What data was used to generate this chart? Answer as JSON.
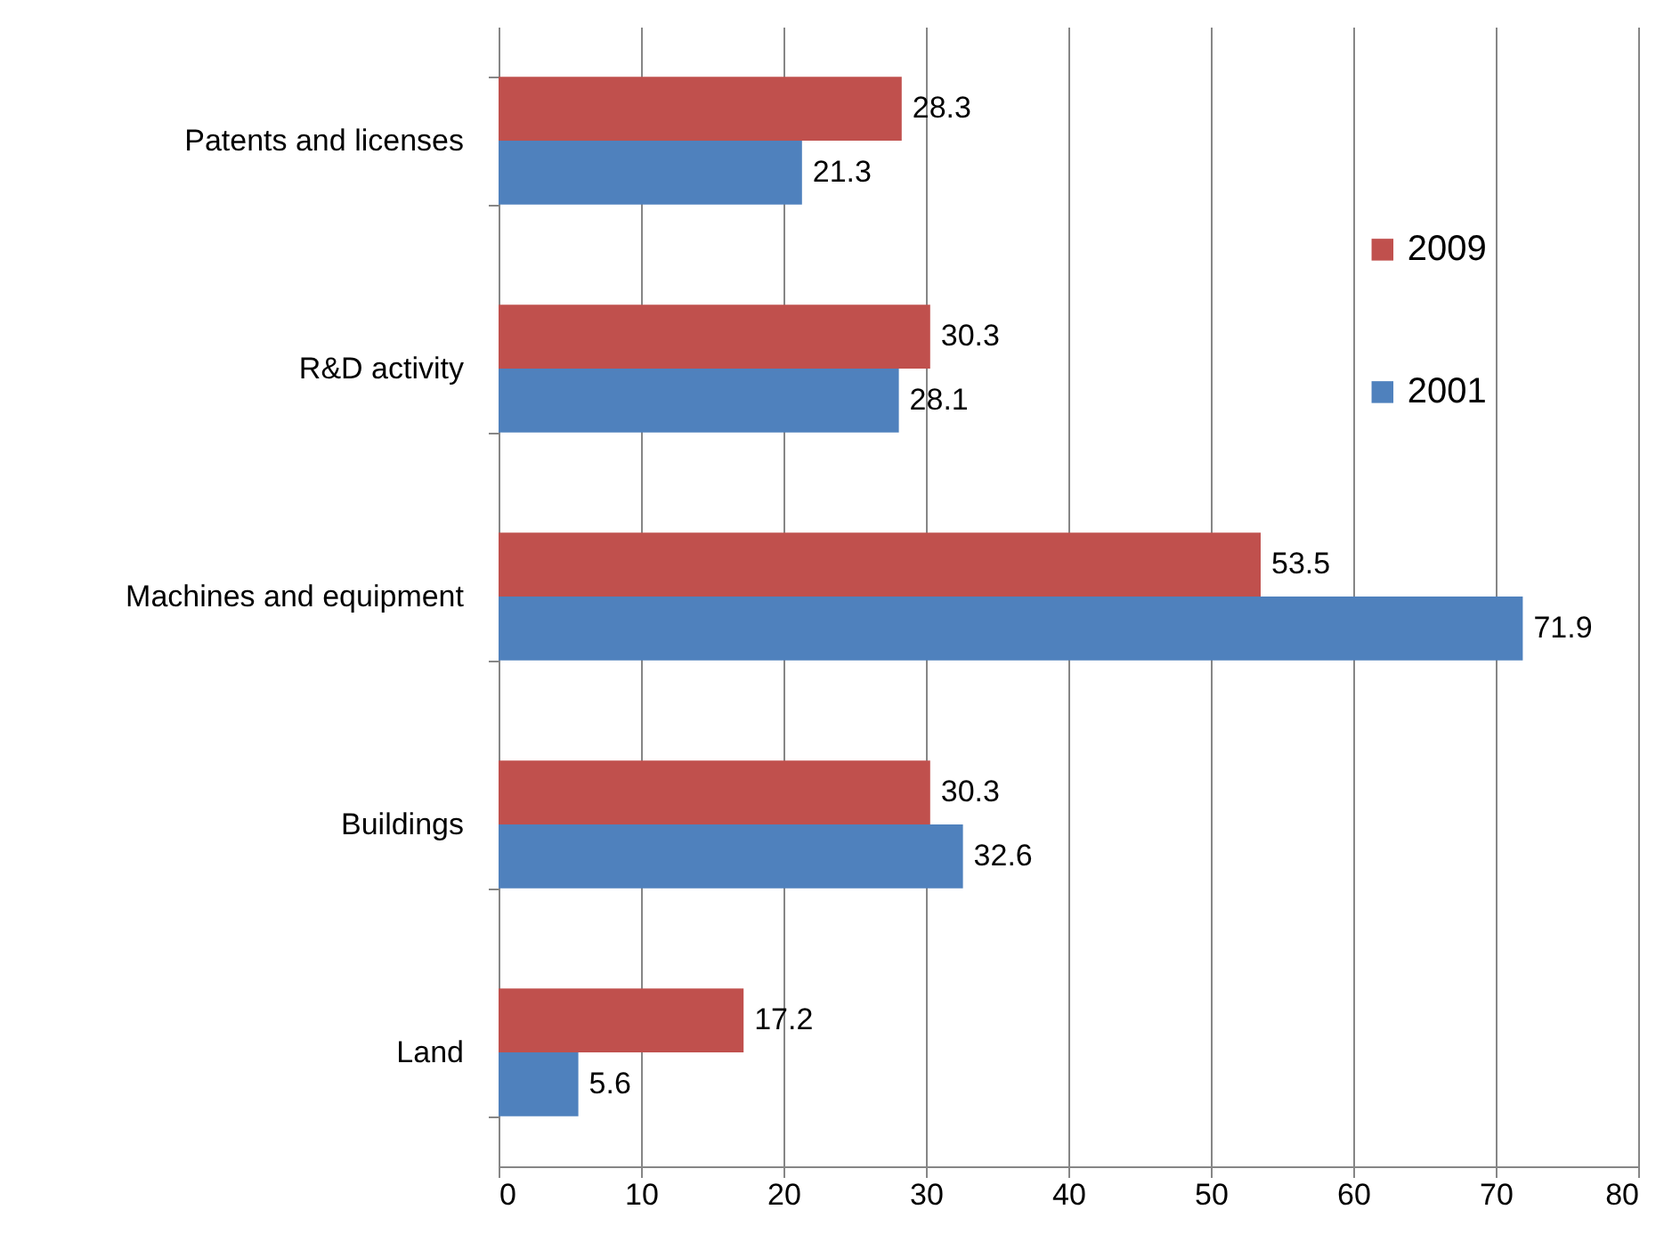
{
  "chart_data": {
    "type": "bar",
    "orientation": "horizontal",
    "categories": [
      "Patents and licenses",
      "R&D activity",
      "Machines and equipment",
      "Buildings",
      "Land"
    ],
    "series": [
      {
        "name": "2009",
        "color": "#c0504d",
        "values": [
          28.3,
          30.3,
          53.5,
          30.3,
          17.2
        ]
      },
      {
        "name": "2001",
        "color": "#4f81bd",
        "values": [
          21.3,
          28.1,
          71.9,
          32.6,
          5.6
        ]
      }
    ],
    "xlim": [
      0,
      80
    ],
    "xticks": [
      0,
      10,
      20,
      30,
      40,
      50,
      60,
      70,
      80
    ],
    "grid": "x",
    "legend": "right",
    "data_labels": true
  }
}
